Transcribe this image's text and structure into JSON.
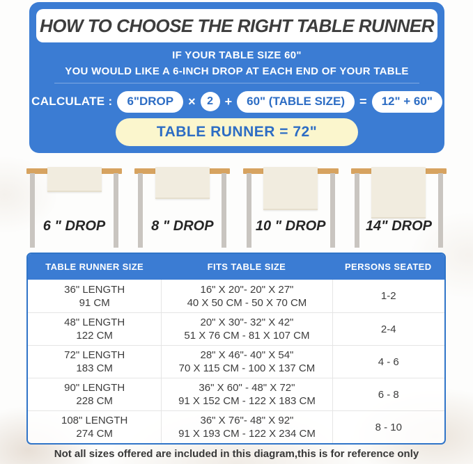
{
  "colors": {
    "panel_blue": "#3b7cd3",
    "pill_text_blue": "#2d6dc4",
    "result_yellow": "#fbf6cd",
    "title_text": "#3d3d3d",
    "wood_tan": "#d7a360",
    "leg_gray": "#c9c5c0",
    "runner_cream": "#f1ecdf"
  },
  "top_panel": {
    "title": "HOW TO CHOOSE THE RIGHT TABLE RUNNER",
    "subtitle_line1": "IF YOUR TABLE SIZE 60\"",
    "subtitle_line2": "YOU WOULD LIKE A 6-INCH DROP AT EACH END OF YOUR TABLE",
    "calc": {
      "label": "CALCULATE :",
      "drop_pill": "6\"DROP",
      "times_sign": "×",
      "multiplier": "2",
      "plus_sign": "+",
      "table_size_pill": "60\"  (TABLE SIZE)",
      "equals_sign": "=",
      "sum_pill": "12\" + 60\"",
      "result": "TABLE RUNNER = 72\""
    }
  },
  "drop_figures": [
    {
      "label": "6 \" DROP"
    },
    {
      "label": "8 \" DROP"
    },
    {
      "label": "10 \" DROP"
    },
    {
      "label": "14\" DROP"
    }
  ],
  "size_table": {
    "headers": [
      "TABLE RUNNER SIZE",
      "FITS TABLE SIZE",
      "PERSONS SEATED"
    ],
    "rows": [
      {
        "length_in": "36\" LENGTH",
        "length_cm": "91 CM",
        "fits_in": "16\" X 20\"- 20\" X 27\"",
        "fits_cm": "40 X 50 CM - 50 X 70 CM",
        "persons": "1-2"
      },
      {
        "length_in": "48\" LENGTH",
        "length_cm": "122 CM",
        "fits_in": "20\" X 30\"- 32\" X 42\"",
        "fits_cm": "51 X 76 CM - 81 X 107 CM",
        "persons": "2-4"
      },
      {
        "length_in": "72\" LENGTH",
        "length_cm": "183 CM",
        "fits_in": "28\" X 46\"- 40\" X 54\"",
        "fits_cm": "70 X 115 CM - 100 X 137 CM",
        "persons": "4 - 6"
      },
      {
        "length_in": "90\" LENGTH",
        "length_cm": "228 CM",
        "fits_in": "36\" X 60\" - 48\" X 72\"",
        "fits_cm": "91 X 152 CM - 122 X 183 CM",
        "persons": "6 - 8"
      },
      {
        "length_in": "108\" LENGTH",
        "length_cm": "274 CM",
        "fits_in": "36\" X 76\"- 48\" X 92\"",
        "fits_cm": "91 X 193 CM - 122 X 234 CM",
        "persons": "8 - 10"
      }
    ]
  },
  "footnote": "Not all sizes offered are included in this diagram,this is for reference only"
}
